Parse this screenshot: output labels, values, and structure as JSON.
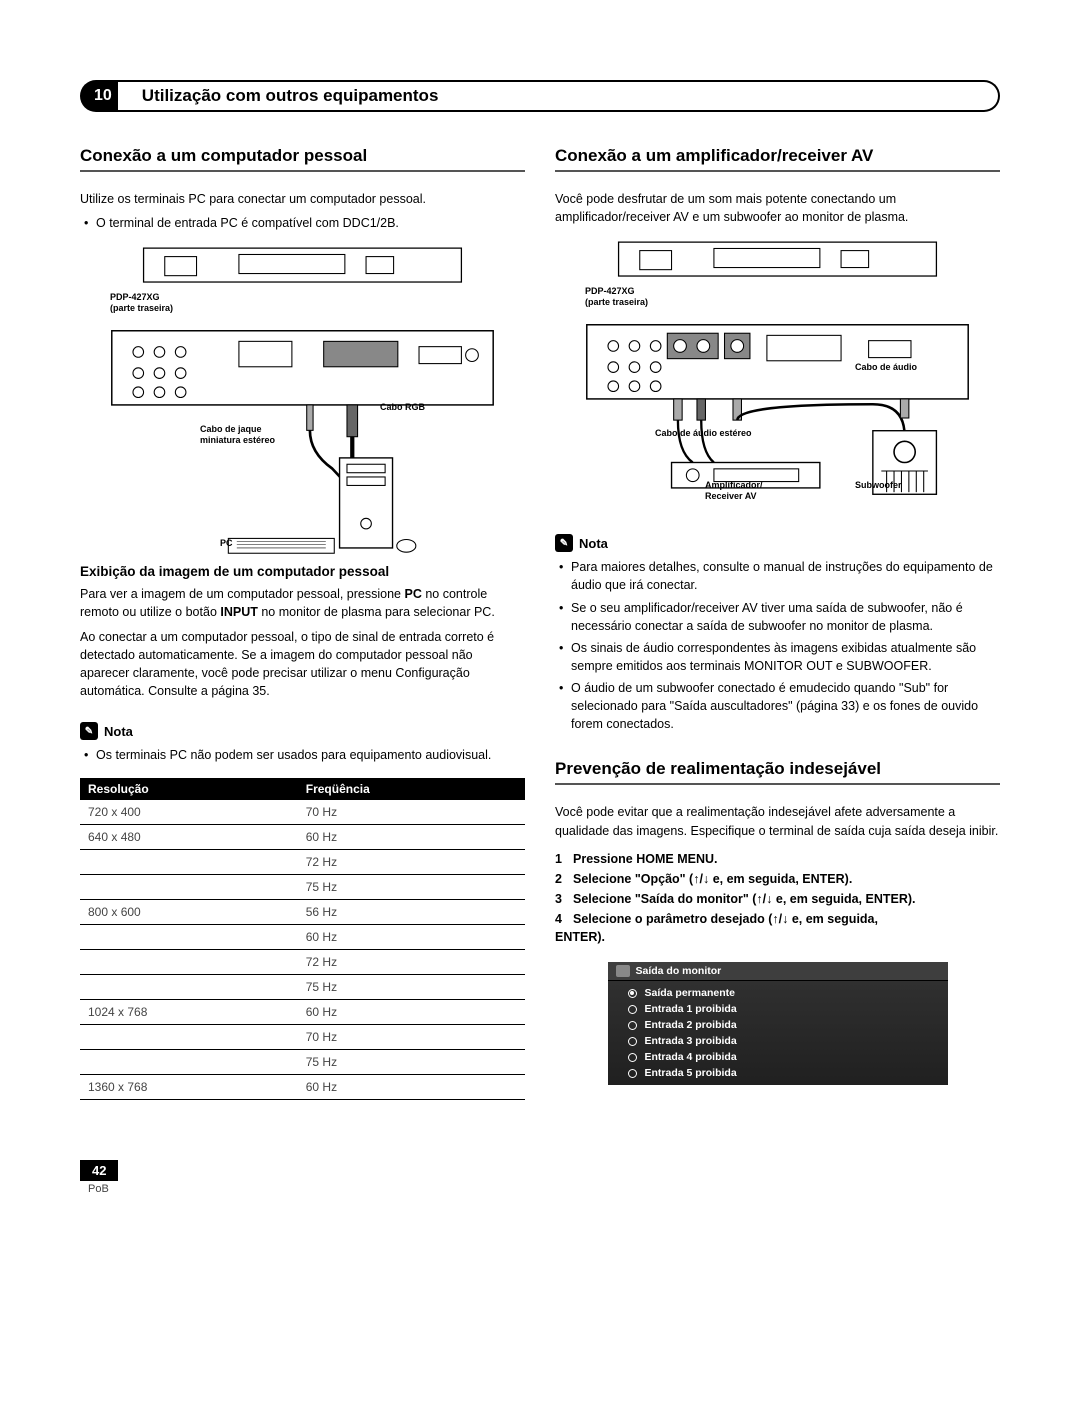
{
  "chapter": {
    "number": "10",
    "title": "Utilização com outros equipamentos"
  },
  "left": {
    "h1": "Conexão a um computador pessoal",
    "intro": "Utilize os terminais PC para conectar um computador pessoal.",
    "intro_b1": "O terminal de entrada PC é compatível com DDC1/2B.",
    "fig": {
      "model": "PDP-427XG",
      "model_sub": "(parte traseira)",
      "cable_rgb": "Cabo RGB",
      "cable_jack_l1": "Cabo de jaque",
      "cable_jack_l2": "miniatura estéreo",
      "pc": "PC"
    },
    "h2": "Exibição da imagem de um computador pessoal",
    "p1_a": "Para ver a imagem de um computador pessoal, pressione ",
    "p1_pc": "PC",
    "p1_b": " no controle remoto ou utilize o botão ",
    "p1_input": "INPUT",
    "p1_c": " no monitor de plasma para selecionar PC.",
    "p2": "Ao conectar a um computador pessoal, o tipo de sinal de entrada correto é detectado automaticamente. Se a imagem do computador pessoal não aparecer claramente, você pode precisar utilizar o menu Configuração automática. Consulte a página 35.",
    "note_label": "Nota",
    "note_b1": "Os terminais PC não podem ser usados para equipamento audiovisual.",
    "table": {
      "col1": "Resolução",
      "col2": "Freqüência",
      "rows": [
        [
          "720 x 400",
          "70 Hz"
        ],
        [
          "640 x 480",
          "60 Hz"
        ],
        [
          "",
          "72 Hz"
        ],
        [
          "",
          "75 Hz"
        ],
        [
          "800 x 600",
          "56 Hz"
        ],
        [
          "",
          "60 Hz"
        ],
        [
          "",
          "72 Hz"
        ],
        [
          "",
          "75 Hz"
        ],
        [
          "1024 x 768",
          "60 Hz"
        ],
        [
          "",
          "70 Hz"
        ],
        [
          "",
          "75 Hz"
        ],
        [
          "1360 x 768",
          "60 Hz"
        ]
      ]
    }
  },
  "right": {
    "h1": "Conexão a um amplificador/receiver AV",
    "intro": "Você pode desfrutar de um som mais potente conectando um amplificador/receiver AV e um subwoofer ao monitor de plasma.",
    "fig": {
      "model": "PDP-427XG",
      "model_sub": "(parte traseira)",
      "cable_audio": "Cabo de áudio",
      "cable_stereo": "Cabo de áudio estéreo",
      "amp_l1": "Amplificador/",
      "amp_l2": "Receiver AV",
      "sub": "Subwoofer"
    },
    "note_label": "Nota",
    "notes": [
      "Para maiores detalhes, consulte o manual de instruções do equipamento de áudio que irá conectar.",
      "Se o seu amplificador/receiver AV tiver uma saída de subwoofer, não é necessário conectar a saída de subwoofer no monitor de plasma.",
      "Os sinais de áudio correspondentes às imagens exibidas atualmente são sempre emitidos aos terminais MONITOR OUT e SUBWOOFER.",
      "O áudio de um subwoofer conectado é emudecido quando \"Sub\" for selecionado para \"Saída auscultadores\" (página 33) e os fones de ouvido forem conectados."
    ],
    "h2": "Prevenção de realimentação indesejável",
    "p1": "Você pode evitar que a realimentação indesejável afete adversamente a qualidade das imagens. Especifique o terminal de saída cuja saída deseja inibir.",
    "steps": {
      "s1": "Pressione HOME MENU.",
      "s2a": "Selecione \"Opção\" (",
      "s2b": " e, em seguida, ENTER).",
      "s3a": "Selecione \"Saída do monitor\" (",
      "s3b": " e, em seguida, ENTER).",
      "s4a": "Selecione o parâmetro desejado (",
      "s4b": " e, em seguida,",
      "s4c": "ENTER)."
    },
    "menu": {
      "title": "Saída do monitor",
      "items": [
        {
          "label": "Saída permanente",
          "sel": true
        },
        {
          "label": "Entrada 1 proibida",
          "sel": false
        },
        {
          "label": "Entrada 2 proibida",
          "sel": false
        },
        {
          "label": "Entrada 3 proibida",
          "sel": false
        },
        {
          "label": "Entrada 4 proibida",
          "sel": false
        },
        {
          "label": "Entrada 5 proibida",
          "sel": false
        }
      ]
    }
  },
  "footer": {
    "page": "42",
    "lang": "PoB"
  }
}
